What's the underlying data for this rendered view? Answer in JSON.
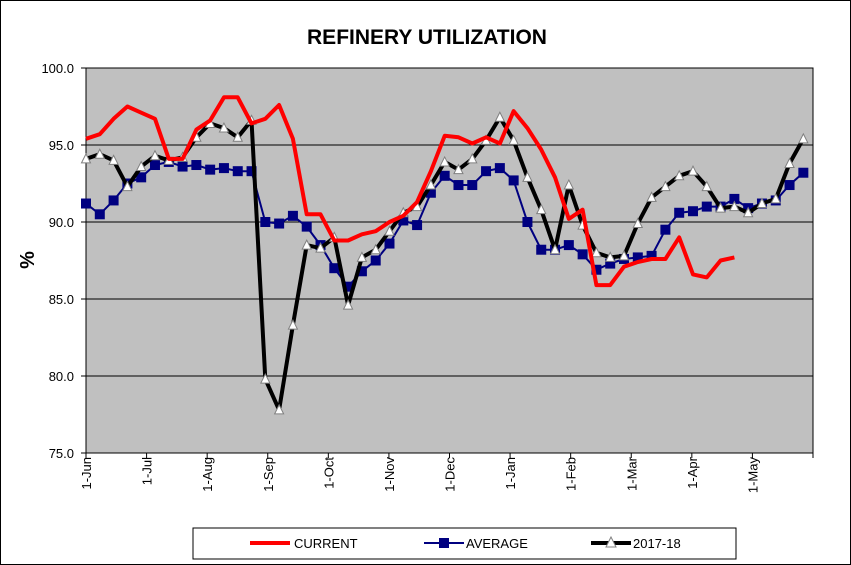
{
  "chart_data": {
    "type": "line",
    "title": "REFINERY UTILIZATION",
    "ylabel": "%",
    "xlabel": "",
    "ylim": [
      75.0,
      100.0
    ],
    "yticks": [
      "75.0",
      "80.0",
      "85.0",
      "90.0",
      "95.0",
      "100.0"
    ],
    "x_ticks": [
      "1-Jun",
      "1-Jul",
      "1-Aug",
      "1-Sep",
      "1-Oct",
      "1-Nov",
      "1-Dec",
      "1-Jan",
      "1-Feb",
      "1-Mar",
      "1-Apr",
      "1-May"
    ],
    "grid": true,
    "legend_position": "bottom",
    "plot_background": "#c0c0c0",
    "weeks": 53,
    "series": [
      {
        "name": "CURRENT",
        "color": "#ff0000",
        "marker": "none",
        "values": [
          95.4,
          95.7,
          96.7,
          97.5,
          97.1,
          96.7,
          94.1,
          94.1,
          96.0,
          96.6,
          98.1,
          98.1,
          96.4,
          96.7,
          97.6,
          95.4,
          90.5,
          90.5,
          88.8,
          88.8,
          89.2,
          89.4,
          90.0,
          90.4,
          91.3,
          93.3,
          95.6,
          95.5,
          95.1,
          95.5,
          95.1,
          97.2,
          96.1,
          94.7,
          92.9,
          90.2,
          90.8,
          85.9,
          85.9,
          87.1,
          87.4,
          87.6,
          87.6,
          89.0,
          86.6,
          86.4,
          87.5,
          87.7,
          null,
          null,
          null,
          null,
          null
        ]
      },
      {
        "name": "AVERAGE",
        "color": "#000080",
        "marker": "square",
        "values": [
          91.2,
          90.5,
          91.4,
          92.5,
          92.9,
          93.7,
          93.9,
          93.6,
          93.7,
          93.4,
          93.5,
          93.3,
          93.3,
          90.0,
          89.9,
          90.4,
          89.7,
          88.5,
          87.0,
          85.8,
          86.8,
          87.5,
          88.6,
          90.1,
          89.8,
          91.9,
          93.0,
          92.4,
          92.4,
          93.3,
          93.5,
          92.7,
          90.0,
          88.2,
          88.2,
          88.5,
          87.9,
          86.9,
          87.3,
          87.6,
          87.7,
          87.8,
          89.5,
          90.6,
          90.7,
          91.0,
          91.0,
          91.5,
          90.9,
          91.2,
          91.4,
          92.4,
          93.2
        ]
      },
      {
        "name": "2017-18",
        "color": "#000000",
        "marker": "triangle",
        "values": [
          94.1,
          94.4,
          94.0,
          92.3,
          93.6,
          94.3,
          94.0,
          94.2,
          95.5,
          96.4,
          96.1,
          95.5,
          96.6,
          79.8,
          77.8,
          83.3,
          88.5,
          88.3,
          89.0,
          84.6,
          87.7,
          88.2,
          89.4,
          90.6,
          91.0,
          92.4,
          93.9,
          93.4,
          94.1,
          95.3,
          96.8,
          95.3,
          92.9,
          90.8,
          88.2,
          92.4,
          89.8,
          88.0,
          87.7,
          87.8,
          89.9,
          91.6,
          92.3,
          93.0,
          93.3,
          92.3,
          90.9,
          91.0,
          90.6,
          91.2,
          91.5,
          93.8,
          95.4
        ]
      }
    ]
  }
}
